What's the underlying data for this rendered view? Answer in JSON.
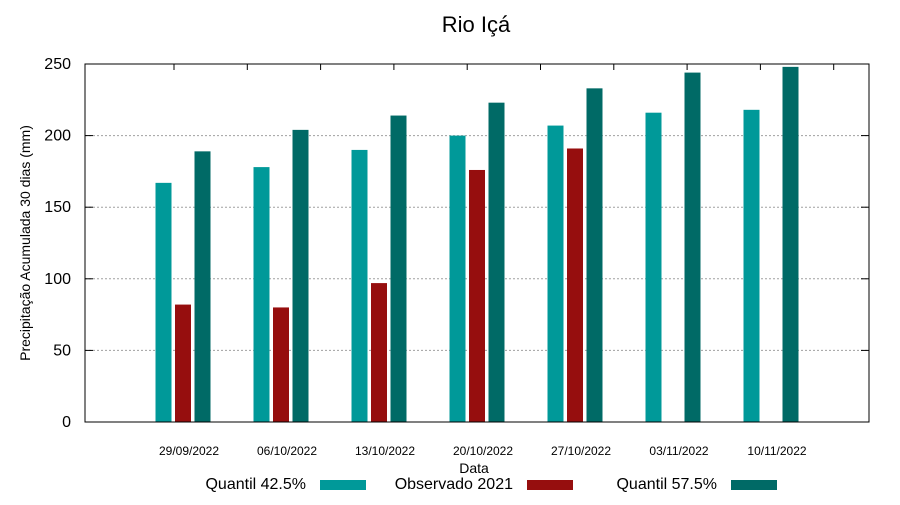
{
  "chart_data": {
    "type": "bar",
    "title": "Rio Içá",
    "xlabel": "Data",
    "ylabel": "Precipitação Acumulada 30 dias (mm)",
    "ylim": [
      0,
      250
    ],
    "yticks": [
      0,
      50,
      100,
      150,
      200,
      250
    ],
    "grid": true,
    "legend_position": "bottom",
    "categories": [
      "29/09/2022",
      "06/10/2022",
      "13/10/2022",
      "20/10/2022",
      "27/10/2022",
      "03/11/2022",
      "10/11/2022"
    ],
    "series": [
      {
        "name": "Quantil 42.5%",
        "color": "#009999",
        "values": [
          167,
          178,
          190,
          200,
          207,
          216,
          218
        ]
      },
      {
        "name": "Observado 2021",
        "color": "#960e0e",
        "values": [
          82,
          80,
          97,
          176,
          191,
          null,
          null
        ]
      },
      {
        "name": "Quantil 57.5%",
        "color": "#006a66",
        "values": [
          189,
          204,
          214,
          223,
          233,
          244,
          248
        ]
      }
    ]
  }
}
